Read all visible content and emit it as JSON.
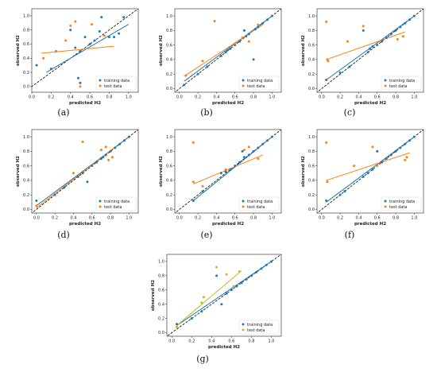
{
  "figure": {
    "colors": {
      "training": "#1f77b4",
      "test_orange": "#ff7f0e",
      "test_olive": "#bcbd22",
      "identity": "#000000"
    },
    "xlabel": "predicted H2",
    "ylabel": "observed H2",
    "xticks": [
      "0.0",
      "0.2",
      "0.4",
      "0.6",
      "0.8",
      "1.0"
    ],
    "yticks": [
      "0.0",
      "0.2",
      "0.4",
      "0.6",
      "0.8",
      "1.0"
    ],
    "legend_train": "training data",
    "legend_test": "test data"
  },
  "chart_data": [
    {
      "caption": "(a)",
      "type": "scatter",
      "xlim": [
        0,
        1.1
      ],
      "ylim": [
        -0.08,
        1.1
      ],
      "legend": "bottom-right",
      "series": [
        {
          "name": "training data",
          "color": "#1f77b4",
          "x": [
            0.05,
            0.2,
            0.25,
            0.4,
            0.45,
            0.48,
            0.5,
            0.5,
            0.55,
            0.6,
            0.65,
            0.7,
            0.72,
            0.8,
            0.85,
            0.9,
            0.95
          ],
          "y": [
            0.3,
            0.25,
            0.5,
            0.8,
            0.55,
            0.12,
            0.05,
            0.5,
            0.7,
            0.6,
            0.65,
            0.78,
            0.98,
            0.7,
            0.7,
            0.75,
            0.98
          ]
        },
        {
          "name": "test data",
          "color": "#ff7f0e",
          "x": [
            0.12,
            0.25,
            0.35,
            0.4,
            0.45,
            0.5,
            0.62,
            0.75
          ],
          "y": [
            0.4,
            0.5,
            0.65,
            0.86,
            0.92,
            0.0,
            0.88,
            0.72
          ]
        }
      ],
      "fits": [
        {
          "color": "#1f77b4",
          "x": [
            0.15,
            1.0
          ],
          "y": [
            0.2,
            0.88
          ]
        },
        {
          "color": "#ff7f0e",
          "x": [
            0.1,
            0.85
          ],
          "y": [
            0.47,
            0.57
          ]
        }
      ]
    },
    {
      "caption": "(b)",
      "type": "scatter",
      "xlim": [
        -0.05,
        1.1
      ],
      "ylim": [
        -0.05,
        1.1
      ],
      "legend": "bottom-right",
      "series": [
        {
          "name": "training data",
          "color": "#1f77b4",
          "x": [
            0.05,
            0.2,
            0.3,
            0.45,
            0.5,
            0.52,
            0.55,
            0.6,
            0.65,
            0.7,
            0.72,
            0.75,
            0.8,
            0.82,
            0.85,
            0.9,
            0.95,
            1.0
          ],
          "y": [
            0.05,
            0.2,
            0.3,
            0.45,
            0.5,
            0.53,
            0.55,
            0.6,
            0.65,
            0.8,
            0.72,
            0.75,
            0.4,
            0.82,
            0.85,
            0.9,
            0.95,
            1.0
          ]
        },
        {
          "name": "test data",
          "color": "#ff7f0e",
          "x": [
            0.07,
            0.38,
            0.25,
            0.6,
            0.68,
            0.75,
            0.85
          ],
          "y": [
            0.18,
            0.93,
            0.38,
            0.62,
            0.7,
            0.65,
            0.88
          ]
        }
      ],
      "fits": [
        {
          "color": "#1f77b4",
          "x": [
            0.05,
            1.0
          ],
          "y": [
            0.1,
            1.0
          ]
        },
        {
          "color": "#ff7f0e",
          "x": [
            0.05,
            0.9
          ],
          "y": [
            0.17,
            0.88
          ]
        }
      ]
    },
    {
      "caption": "(c)",
      "type": "scatter",
      "xlim": [
        -0.05,
        1.1
      ],
      "ylim": [
        -0.05,
        1.1
      ],
      "legend": "bottom-right",
      "series": [
        {
          "name": "training data",
          "color": "#1f77b4",
          "x": [
            0.05,
            0.2,
            0.3,
            0.45,
            0.5,
            0.52,
            0.55,
            0.6,
            0.65,
            0.7,
            0.75,
            0.8,
            0.85,
            0.9,
            0.95,
            1.0
          ],
          "y": [
            0.12,
            0.22,
            0.3,
            0.8,
            0.5,
            0.55,
            0.58,
            0.6,
            0.65,
            0.7,
            0.75,
            0.8,
            0.85,
            0.9,
            0.95,
            1.0
          ]
        },
        {
          "name": "test data",
          "color": "#ff7f0e",
          "x": [
            0.05,
            0.06,
            0.07,
            0.28,
            0.45,
            0.82,
            0.88
          ],
          "y": [
            0.92,
            0.4,
            0.38,
            0.65,
            0.86,
            0.68,
            0.72
          ]
        }
      ],
      "fits": [
        {
          "color": "#1f77b4",
          "x": [
            0.05,
            1.0
          ],
          "y": [
            0.12,
            1.0
          ]
        },
        {
          "color": "#ff7f0e",
          "x": [
            0.05,
            0.9
          ],
          "y": [
            0.4,
            0.78
          ]
        }
      ]
    },
    {
      "caption": "(d)",
      "type": "scatter",
      "xlim": [
        -0.05,
        1.1
      ],
      "ylim": [
        -0.05,
        1.1
      ],
      "legend": "bottom-right",
      "series": [
        {
          "name": "training data",
          "color": "#1f77b4",
          "x": [
            0.0,
            0.2,
            0.3,
            0.45,
            0.5,
            0.55,
            0.6,
            0.65,
            0.7,
            0.72,
            0.75,
            0.8,
            0.85,
            0.9,
            0.95,
            1.0
          ],
          "y": [
            0.12,
            0.2,
            0.3,
            0.45,
            0.5,
            0.38,
            0.6,
            0.65,
            0.7,
            0.72,
            0.75,
            0.8,
            0.85,
            0.9,
            0.95,
            1.0
          ]
        },
        {
          "name": "test data",
          "color": "#ff7f0e",
          "x": [
            0.0,
            0.4,
            0.5,
            0.7,
            0.75,
            0.78,
            0.82
          ],
          "y": [
            0.05,
            0.5,
            0.93,
            0.82,
            0.86,
            0.68,
            0.72
          ]
        }
      ],
      "fits": [
        {
          "color": "#1f77b4",
          "x": [
            0.0,
            1.0
          ],
          "y": [
            0.05,
            1.0
          ]
        },
        {
          "color": "#ff7f0e",
          "x": [
            0.0,
            0.85
          ],
          "y": [
            0.02,
            0.86
          ]
        }
      ]
    },
    {
      "caption": "(e)",
      "type": "scatter",
      "xlim": [
        -0.05,
        1.1
      ],
      "ylim": [
        -0.05,
        1.1
      ],
      "legend": "bottom-right",
      "series": [
        {
          "name": "training data",
          "color": "#1f77b4",
          "x": [
            0.15,
            0.25,
            0.45,
            0.5,
            0.55,
            0.6,
            0.65,
            0.68,
            0.7,
            0.75,
            0.8,
            0.85,
            0.9,
            0.95,
            1.0
          ],
          "y": [
            0.12,
            0.25,
            0.5,
            0.52,
            0.55,
            0.6,
            0.65,
            0.8,
            0.72,
            0.75,
            0.8,
            0.85,
            0.9,
            0.95,
            1.0
          ]
        },
        {
          "name": "test data",
          "color": "#ff7f0e",
          "x": [
            0.15,
            0.15,
            0.25,
            0.5,
            0.7,
            0.75,
            0.85
          ],
          "y": [
            0.92,
            0.38,
            0.32,
            0.55,
            0.82,
            0.86,
            0.7
          ]
        }
      ],
      "fits": [
        {
          "color": "#1f77b4",
          "x": [
            0.15,
            1.0
          ],
          "y": [
            0.12,
            1.0
          ]
        },
        {
          "color": "#ff7f0e",
          "x": [
            0.15,
            0.9
          ],
          "y": [
            0.35,
            0.75
          ]
        }
      ]
    },
    {
      "caption": "(f)",
      "type": "scatter",
      "xlim": [
        -0.05,
        1.1
      ],
      "ylim": [
        -0.05,
        1.1
      ],
      "legend": "bottom-right",
      "series": [
        {
          "name": "training data",
          "color": "#1f77b4",
          "x": [
            0.05,
            0.2,
            0.25,
            0.45,
            0.5,
            0.55,
            0.6,
            0.65,
            0.7,
            0.75,
            0.8,
            0.85,
            0.9,
            0.95,
            1.0
          ],
          "y": [
            0.12,
            0.2,
            0.25,
            0.45,
            0.5,
            0.55,
            0.8,
            0.65,
            0.7,
            0.75,
            0.8,
            0.85,
            0.9,
            0.95,
            1.0
          ]
        },
        {
          "name": "test data",
          "color": "#ff7f0e",
          "x": [
            0.05,
            0.06,
            0.35,
            0.55,
            0.6,
            0.9,
            0.92
          ],
          "y": [
            0.92,
            0.38,
            0.6,
            0.86,
            0.6,
            0.68,
            0.72
          ]
        }
      ],
      "fits": [
        {
          "color": "#1f77b4",
          "x": [
            0.05,
            1.0
          ],
          "y": [
            0.1,
            1.0
          ]
        },
        {
          "color": "#ff7f0e",
          "x": [
            0.05,
            0.95
          ],
          "y": [
            0.4,
            0.78
          ]
        }
      ]
    },
    {
      "caption": "(g)",
      "type": "scatter",
      "xlim": [
        -0.05,
        1.1
      ],
      "ylim": [
        -0.05,
        1.1
      ],
      "legend": "bottom-right",
      "series": [
        {
          "name": "training data",
          "color": "#1f77b4",
          "x": [
            0.05,
            0.2,
            0.3,
            0.45,
            0.5,
            0.55,
            0.6,
            0.65,
            0.7,
            0.75,
            0.8,
            0.85,
            0.9,
            0.95,
            1.0
          ],
          "y": [
            0.12,
            0.2,
            0.3,
            0.8,
            0.4,
            0.55,
            0.6,
            0.65,
            0.7,
            0.75,
            0.8,
            0.85,
            0.9,
            0.95,
            1.0
          ]
        },
        {
          "name": "test data",
          "color": "#bcbd22",
          "x": [
            0.05,
            0.3,
            0.32,
            0.45,
            0.55,
            0.62,
            0.68
          ],
          "y": [
            0.08,
            0.42,
            0.5,
            0.92,
            0.82,
            0.65,
            0.86
          ]
        }
      ],
      "fits": [
        {
          "color": "#1f77b4",
          "x": [
            0.05,
            1.0
          ],
          "y": [
            0.1,
            1.0
          ]
        },
        {
          "color": "#bcbd22",
          "x": [
            0.05,
            0.7
          ],
          "y": [
            0.1,
            0.87
          ]
        }
      ]
    }
  ]
}
